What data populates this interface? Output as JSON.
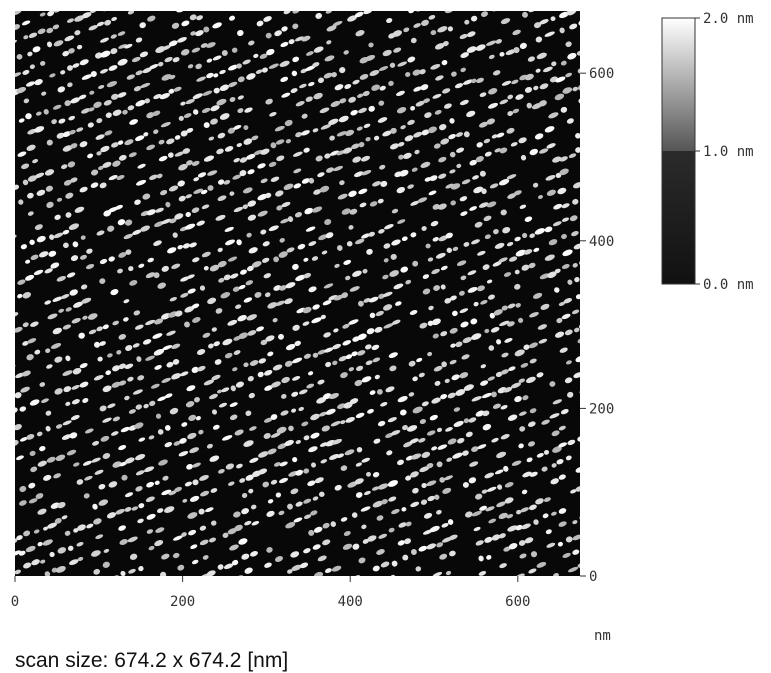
{
  "chart_data": {
    "type": "image",
    "xlim": [
      0,
      674.2
    ],
    "ylim": [
      0,
      674.2
    ],
    "xticks": [
      0,
      200,
      400,
      600
    ],
    "yticks": [
      0,
      200,
      400,
      600
    ],
    "x_unit": "nm",
    "caption": "scan size: 674.2 x 674.2 [nm]",
    "colorbar": {
      "lim": [
        0,
        2
      ],
      "ticks": [
        {
          "value": 0,
          "label": "0.0 nm"
        },
        {
          "value": 1,
          "label": "1.0 nm"
        },
        {
          "value": 2,
          "label": "2.0 nm"
        }
      ]
    }
  }
}
